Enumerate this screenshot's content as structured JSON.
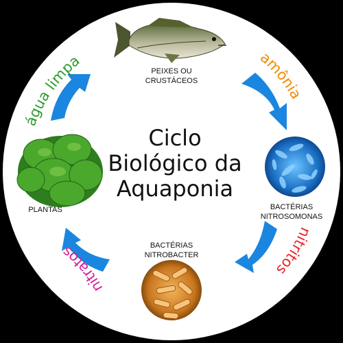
{
  "title_lines": [
    "Ciclo",
    "Biológico da",
    "Aquaponia"
  ],
  "nodes": {
    "fish": "PEIXES OU\nCRUSTÁCEOS",
    "nitrosomonas": "BACTÉRIAS\nNITROSOMONAS",
    "nitrobacter": "BACTÉRIAS\nNITROBACTER",
    "plants": "PLANTAS"
  },
  "transitions": {
    "ammonia": "amônia",
    "nitrites": "nitritos",
    "nitrates": "nitratos",
    "clean_water": "água limpa"
  },
  "colors": {
    "ammonia": "#f08a00",
    "nitrites": "#e8242c",
    "nitrates": "#d4209a",
    "clean_water": "#2e9a2e",
    "arrow": "#1a86e0",
    "circle": "#ffffff",
    "background": "#000000"
  },
  "icons": [
    "fish-icon",
    "nitrosomonas-bacteria-icon",
    "nitrobacter-bacteria-icon",
    "lettuce-plant-icon",
    "cycle-arrow-icon"
  ]
}
